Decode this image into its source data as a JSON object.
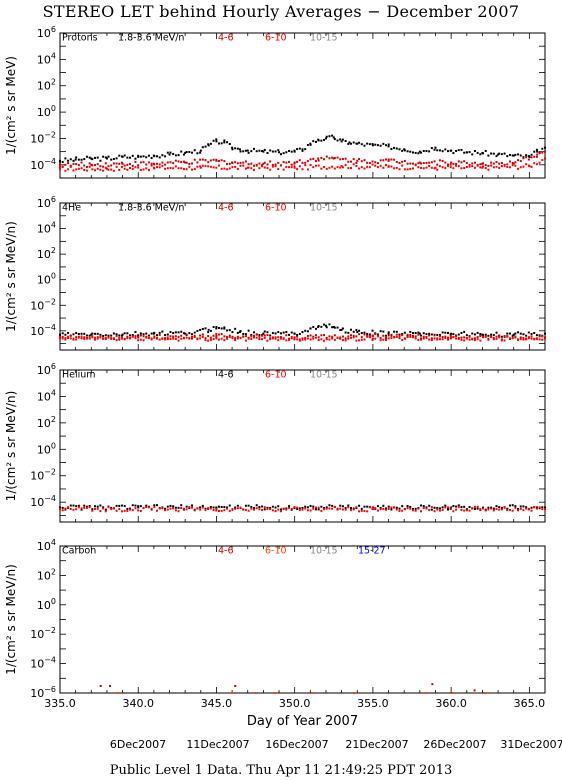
{
  "page": {
    "title": "STEREO LET behind Hourly Averages − December 2007",
    "footer": "Public Level 1 Data. Thu Apr 11 21:49:25 PDT 2013",
    "date_labels": [
      "6Dec2007",
      "11Dec2007",
      "16Dec2007",
      "21Dec2007",
      "26Dec2007",
      "31Dec2007"
    ]
  },
  "chart_data": [
    {
      "type": "scatter",
      "title": "Protons",
      "ylabel": "1/(cm² s sr MeV)",
      "xlim": [
        335.0,
        366.0
      ],
      "ylim_log10": [
        -5,
        6
      ],
      "yticks_log10": [
        -4,
        -2,
        0,
        2,
        4,
        6
      ],
      "series": [
        {
          "name": "1.8-3.6 MeV/n",
          "color": "#000000",
          "x": [
            335.0,
            336.0,
            337.0,
            338.0,
            339.0,
            340.0,
            341.0,
            342.0,
            343.0,
            344.0,
            344.5,
            345.0,
            345.5,
            346.0,
            346.5,
            347.0,
            348.0,
            349.0,
            350.0,
            350.5,
            351.0,
            351.5,
            352.0,
            352.5,
            353.0,
            353.5,
            354.0,
            355.0,
            356.0,
            357.0,
            358.0,
            359.0,
            360.0,
            361.0,
            362.0,
            363.0,
            364.0,
            365.0,
            365.5,
            366.0
          ],
          "y": [
            0.0002,
            0.00025,
            0.0003,
            0.0003,
            0.0004,
            0.0004,
            0.0005,
            0.0006,
            0.0008,
            0.0012,
            0.003,
            0.006,
            0.005,
            0.002,
            0.0015,
            0.0012,
            0.001,
            0.0009,
            0.001,
            0.0015,
            0.004,
            0.008,
            0.01,
            0.012,
            0.006,
            0.005,
            0.004,
            0.003,
            0.0025,
            0.0015,
            0.001,
            0.002,
            0.0012,
            0.0009,
            0.0008,
            0.0006,
            0.0005,
            0.0004,
            0.001,
            0.002
          ]
        },
        {
          "name": "4-6",
          "color": "#cc0000",
          "x": [
            335.0,
            337.0,
            339.0,
            341.0,
            343.0,
            345.0,
            346.0,
            348.0,
            350.0,
            351.5,
            352.5,
            354.0,
            356.0,
            358.0,
            360.0,
            362.0,
            364.0,
            365.5,
            366.0
          ],
          "y": [
            0.0001,
            0.0001,
            0.00012,
            0.00012,
            0.00015,
            0.0002,
            0.00015,
            0.00012,
            0.00015,
            0.0003,
            0.0003,
            0.0002,
            0.0002,
            0.00015,
            0.00015,
            0.00012,
            0.00012,
            0.0006,
            0.001
          ]
        },
        {
          "name": "6-10",
          "color": "#ff0000",
          "x": [
            335.0,
            338.0,
            341.0,
            344.0,
            347.0,
            350.0,
            353.0,
            356.0,
            359.0,
            362.0,
            365.0,
            366.0
          ],
          "y": [
            5e-05,
            5e-05,
            6e-05,
            6e-05,
            6e-05,
            6e-05,
            8e-05,
            7e-05,
            6e-05,
            6e-05,
            8e-05,
            0.0003
          ]
        },
        {
          "name": "10-15",
          "color": "#888888",
          "x": [],
          "y": []
        }
      ]
    },
    {
      "type": "scatter",
      "title": "4He",
      "ylabel": "1/(cm² s sr MeV/n)",
      "xlim": [
        335.0,
        366.0
      ],
      "ylim_log10": [
        -5.5,
        6
      ],
      "yticks_log10": [
        -4,
        -2,
        0,
        2,
        4,
        6
      ],
      "series": [
        {
          "name": "1.8-3.6 MeV/n",
          "color": "#000000",
          "x": [
            335.0,
            337.0,
            339.0,
            341.0,
            343.0,
            344.5,
            345.0,
            345.5,
            346.5,
            348.0,
            350.0,
            351.0,
            351.5,
            352.0,
            352.5,
            353.0,
            354.0,
            356.0,
            358.0,
            360.0,
            362.0,
            364.0,
            366.0
          ],
          "y": [
            5e-05,
            5e-05,
            5e-05,
            6e-05,
            6e-05,
            0.00012,
            0.0002,
            0.00015,
            8e-05,
            6e-05,
            6e-05,
            0.00015,
            0.0002,
            0.00025,
            0.0002,
            0.00012,
            8e-05,
            6e-05,
            6e-05,
            6e-05,
            5e-05,
            5e-05,
            6e-05
          ]
        },
        {
          "name": "4-6",
          "color": "#cc0000",
          "x": [
            335.0,
            340.0,
            345.0,
            350.0,
            355.0,
            360.0,
            366.0
          ],
          "y": [
            3e-05,
            3e-05,
            4e-05,
            3e-05,
            4e-05,
            3e-05,
            3e-05
          ]
        },
        {
          "name": "6-10",
          "color": "#ff0000",
          "x": [
            335.0,
            345.0,
            355.0,
            366.0
          ],
          "y": [
            2.5e-05,
            2.5e-05,
            2.5e-05,
            2.5e-05
          ]
        },
        {
          "name": "10-15",
          "color": "#888888",
          "x": [],
          "y": []
        }
      ]
    },
    {
      "type": "scatter",
      "title": "Helium",
      "ylabel": "1/(cm² s sr MeV/n)",
      "xlim": [
        335.0,
        366.0
      ],
      "ylim_log10": [
        -5.5,
        6
      ],
      "yticks_log10": [
        -4,
        -2,
        0,
        2,
        4,
        6
      ],
      "series": [
        {
          "name": "4-6",
          "color": "#000000",
          "x": [
            335.0,
            340.0,
            345.0,
            350.0,
            355.0,
            360.0,
            366.0
          ],
          "y": [
            4e-05,
            4e-05,
            4e-05,
            4e-05,
            4e-05,
            4e-05,
            4e-05
          ]
        },
        {
          "name": "6-10",
          "color": "#ff0000",
          "x": [
            335.0,
            345.0,
            355.0,
            366.0
          ],
          "y": [
            3e-05,
            3e-05,
            3e-05,
            3e-05
          ]
        },
        {
          "name": "10-15",
          "color": "#888888",
          "x": [],
          "y": []
        }
      ]
    },
    {
      "type": "scatter",
      "title": "Carbon",
      "ylabel": "1/(cm² s sr MeV/n)",
      "xlabel": "Day of Year 2007",
      "xlim": [
        335.0,
        366.0
      ],
      "xticks": [
        335.0,
        340.0,
        345.0,
        350.0,
        355.0,
        360.0,
        365.0
      ],
      "ylim_log10": [
        -6,
        4
      ],
      "yticks_log10": [
        -6,
        -4,
        -2,
        0,
        2,
        4
      ],
      "series": [
        {
          "name": "4-6",
          "color": "#cc0000",
          "x": [
            337.6,
            338.2,
            346.2,
            358.8,
            361.5
          ],
          "y": [
            3e-06,
            3e-06,
            3e-06,
            4e-06,
            1.5e-06
          ]
        },
        {
          "name": "6-10",
          "color": "#ff4400",
          "x": [
            338.7,
            346.0,
            347.5,
            348.7,
            351.2,
            353.8,
            358.4,
            360.1,
            362.2
          ],
          "y": [
            1e-06,
            1e-06,
            1e-06,
            1e-06,
            1e-06,
            1e-06,
            1e-06,
            1e-06,
            1e-06
          ]
        },
        {
          "name": "10-15",
          "color": "#888888",
          "x": [],
          "y": []
        },
        {
          "name": "15-27",
          "color": "#0000ee",
          "x": [],
          "y": []
        }
      ]
    }
  ]
}
